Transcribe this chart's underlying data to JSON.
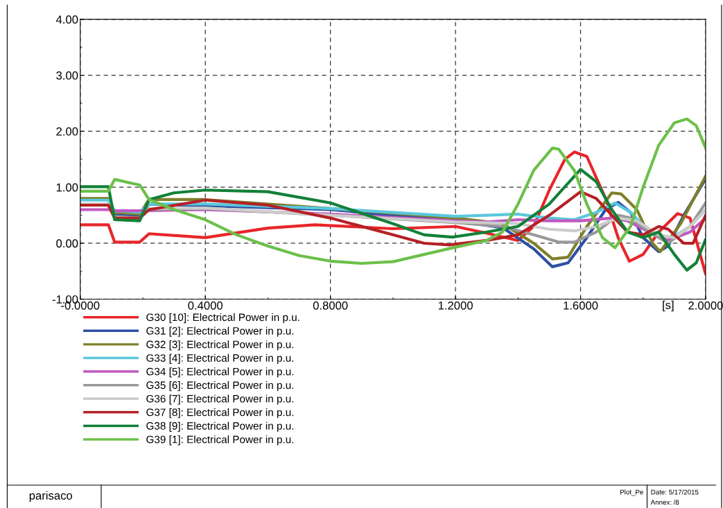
{
  "chart_data": {
    "type": "line",
    "xlabel": "[s]",
    "xlim": [
      0,
      2.0
    ],
    "ylim": [
      -1.0,
      4.0
    ],
    "xticks": [
      {
        "value": 0,
        "label": "-0.0000"
      },
      {
        "value": 0.4,
        "label": "0.4000"
      },
      {
        "value": 0.8,
        "label": "0.8000"
      },
      {
        "value": 1.2,
        "label": "1.2000"
      },
      {
        "value": 1.6,
        "label": "1.6000"
      },
      {
        "value": 2.0,
        "label": "2.0000"
      }
    ],
    "yticks": [
      {
        "value": -1,
        "label": "-1.00"
      },
      {
        "value": 0,
        "label": "0.00"
      },
      {
        "value": 1,
        "label": "1.00"
      },
      {
        "value": 2,
        "label": "2.00"
      },
      {
        "value": 3,
        "label": "3.00"
      },
      {
        "value": 4,
        "label": "4.00"
      }
    ],
    "grid": true,
    "legend": "bottom",
    "marker": "none",
    "line_style": "solid",
    "annotations": [
      "parisaco",
      "Plot_Pe",
      "Date: 5/17/2015",
      "Annex: /8"
    ],
    "series": [
      {
        "name": "G30 [10]: Electrical Power in p.u.",
        "color": "#e8262a",
        "x": [
          0,
          0.09,
          0.11,
          0.19,
          0.22,
          0.4,
          0.6,
          0.75,
          1.0,
          1.2,
          1.3,
          1.4,
          1.45,
          1.5,
          1.55,
          1.58,
          1.62,
          1.68,
          1.72,
          1.756,
          1.8,
          1.85,
          1.91,
          1.95,
          2.0
        ],
        "values": [
          0.33,
          0.33,
          0.02,
          0.02,
          0.17,
          0.1,
          0.27,
          0.33,
          0.26,
          0.3,
          0.18,
          0.05,
          0.3,
          0.95,
          1.5,
          1.63,
          1.55,
          0.8,
          0.1,
          -0.32,
          -0.2,
          0.2,
          0.53,
          0.45,
          -0.55
        ]
      },
      {
        "name": "G31 [2]: Electrical Power in p.u.",
        "color": "#2e4fa5",
        "x": [
          0,
          0.09,
          0.11,
          0.19,
          0.22,
          0.4,
          0.8,
          1.2,
          1.35,
          1.45,
          1.51,
          1.56,
          1.62,
          1.68,
          1.72,
          1.76,
          1.8,
          1.85,
          1.88,
          1.93,
          2.0
        ],
        "values": [
          0.79,
          0.79,
          0.5,
          0.48,
          0.7,
          0.67,
          0.6,
          0.4,
          0.28,
          -0.1,
          -0.42,
          -0.35,
          0.1,
          0.6,
          0.73,
          0.55,
          0.1,
          -0.15,
          -0.05,
          0.5,
          1.15
        ]
      },
      {
        "name": "G32 [3]: Electrical Power in p.u.",
        "color": "#7f7f2a",
        "x": [
          0,
          0.09,
          0.11,
          0.19,
          0.22,
          0.4,
          0.8,
          1.2,
          1.35,
          1.45,
          1.51,
          1.56,
          1.62,
          1.7,
          1.73,
          1.78,
          1.83,
          1.855,
          1.92,
          2.0
        ],
        "values": [
          0.8,
          0.8,
          0.55,
          0.52,
          0.78,
          0.78,
          0.62,
          0.45,
          0.35,
          0.0,
          -0.28,
          -0.25,
          0.3,
          0.9,
          0.88,
          0.6,
          0.0,
          -0.15,
          0.35,
          1.2
        ]
      },
      {
        "name": "G33 [4]: Electrical Power in p.u.",
        "color": "#5bc8dc",
        "x": [
          0,
          0.09,
          0.11,
          0.19,
          0.22,
          0.4,
          0.8,
          1.2,
          1.3,
          1.4,
          1.5,
          1.58,
          1.65,
          1.71,
          1.76,
          1.82,
          1.88,
          1.95,
          2.0
        ],
        "values": [
          0.77,
          0.77,
          0.58,
          0.55,
          0.7,
          0.7,
          0.62,
          0.48,
          0.5,
          0.52,
          0.45,
          0.42,
          0.55,
          0.72,
          0.55,
          0.2,
          0.05,
          0.3,
          0.6
        ]
      },
      {
        "name": "G34 [5]: Electrical Power in p.u.",
        "color": "#c158c0",
        "x": [
          0,
          0.09,
          0.11,
          0.2,
          0.4,
          0.8,
          1.2,
          1.3,
          1.4,
          1.5,
          1.6,
          1.7,
          1.75,
          1.82,
          1.88,
          1.95,
          2.0
        ],
        "values": [
          0.6,
          0.6,
          0.58,
          0.58,
          0.6,
          0.52,
          0.4,
          0.38,
          0.42,
          0.4,
          0.4,
          0.45,
          0.4,
          0.2,
          0.05,
          0.2,
          0.45
        ]
      },
      {
        "name": "G35 [6]: Electrical Power in p.u.",
        "color": "#999999",
        "x": [
          0,
          0.09,
          0.11,
          0.19,
          0.22,
          0.4,
          0.8,
          1.2,
          1.35,
          1.45,
          1.53,
          1.58,
          1.65,
          1.72,
          1.76,
          1.82,
          1.88,
          1.95,
          2.0
        ],
        "values": [
          0.68,
          0.68,
          0.47,
          0.45,
          0.6,
          0.62,
          0.5,
          0.37,
          0.3,
          0.15,
          0.02,
          0.02,
          0.2,
          0.5,
          0.45,
          0.2,
          0.0,
          0.3,
          0.72
        ]
      },
      {
        "name": "G36 [7]: Electrical Power in p.u.",
        "color": "#cccccc",
        "x": [
          0,
          0.09,
          0.11,
          0.19,
          0.22,
          0.4,
          0.8,
          1.2,
          1.4,
          1.5,
          1.58,
          1.65,
          1.72,
          1.78,
          1.85,
          1.9,
          1.95,
          2.0
        ],
        "values": [
          0.7,
          0.7,
          0.47,
          0.45,
          0.62,
          0.63,
          0.5,
          0.38,
          0.35,
          0.25,
          0.22,
          0.3,
          0.45,
          0.4,
          0.15,
          0.1,
          0.3,
          0.6
        ]
      },
      {
        "name": "G37 [8]: Electrical Power in p.u.",
        "color": "#b52025",
        "x": [
          0,
          0.09,
          0.11,
          0.19,
          0.22,
          0.4,
          0.6,
          0.8,
          1.0,
          1.1,
          1.18,
          1.3,
          1.4,
          1.5,
          1.6,
          1.65,
          1.7,
          1.75,
          1.8,
          1.85,
          1.88,
          1.93,
          1.96,
          2.0
        ],
        "values": [
          0.68,
          0.68,
          0.45,
          0.45,
          0.6,
          0.77,
          0.68,
          0.45,
          0.15,
          0.0,
          -0.03,
          0.05,
          0.15,
          0.5,
          0.92,
          0.8,
          0.5,
          0.2,
          0.15,
          0.3,
          0.25,
          0.0,
          0.0,
          0.5
        ]
      },
      {
        "name": "G38 [9]: Electrical Power in p.u.",
        "color": "#128037",
        "x": [
          0,
          0.09,
          0.11,
          0.19,
          0.22,
          0.3,
          0.4,
          0.6,
          0.8,
          1.0,
          1.1,
          1.19,
          1.3,
          1.4,
          1.5,
          1.6,
          1.65,
          1.7,
          1.75,
          1.8,
          1.85,
          1.9,
          1.94,
          1.97,
          2.0
        ],
        "values": [
          1.01,
          1.01,
          0.42,
          0.4,
          0.78,
          0.9,
          0.95,
          0.92,
          0.72,
          0.35,
          0.15,
          0.11,
          0.2,
          0.3,
          0.7,
          1.32,
          1.1,
          0.6,
          0.2,
          0.1,
          0.2,
          -0.2,
          -0.48,
          -0.35,
          0.07
        ]
      },
      {
        "name": "G39 [1]: Electrical Power in p.u.",
        "color": "#6cc04a",
        "x": [
          0,
          0.09,
          0.11,
          0.19,
          0.22,
          0.3,
          0.4,
          0.5,
          0.6,
          0.7,
          0.8,
          0.9,
          1.0,
          1.1,
          1.2,
          1.3,
          1.35,
          1.4,
          1.45,
          1.51,
          1.53,
          1.58,
          1.62,
          1.67,
          1.71,
          1.76,
          1.8,
          1.85,
          1.9,
          1.94,
          1.97,
          2.0
        ],
        "values": [
          0.93,
          0.93,
          1.14,
          1.04,
          0.78,
          0.6,
          0.42,
          0.15,
          -0.05,
          -0.22,
          -0.32,
          -0.36,
          -0.33,
          -0.2,
          -0.07,
          0.05,
          0.2,
          0.7,
          1.3,
          1.7,
          1.68,
          1.3,
          0.7,
          0.1,
          -0.08,
          0.3,
          1.0,
          1.75,
          2.15,
          2.22,
          2.1,
          1.7
        ]
      }
    ]
  }
}
